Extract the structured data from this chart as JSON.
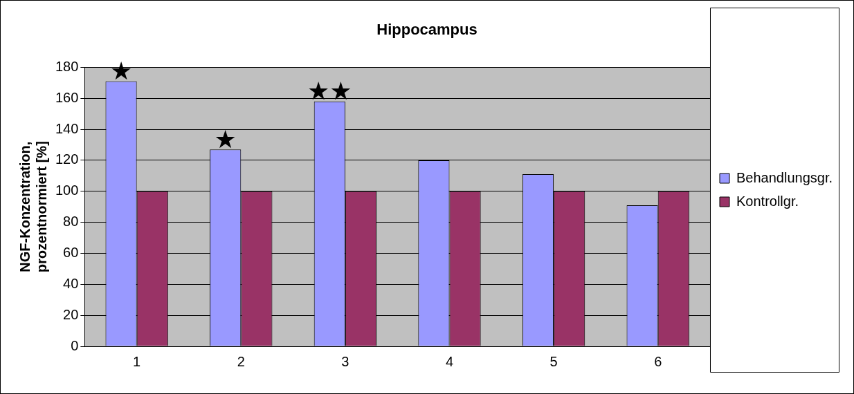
{
  "chart_data": {
    "type": "bar",
    "title": "Hippocampus",
    "ylabel": "NGF-Konzentration, prozentnormiert [%]",
    "categories": [
      "1",
      "2",
      "3",
      "4",
      "5",
      "6"
    ],
    "series": [
      {
        "name": "Behandlungsgr.",
        "color": "#9999ff",
        "values": [
          171,
          127,
          158,
          120,
          111,
          91
        ]
      },
      {
        "name": "Kontrollgr.",
        "color": "#993366",
        "values": [
          100,
          100,
          100,
          100,
          100,
          100
        ]
      }
    ],
    "ylim": [
      0,
      180
    ],
    "yticks": [
      0,
      20,
      40,
      60,
      80,
      100,
      120,
      140,
      160,
      180
    ],
    "grid": "y",
    "legend": "right",
    "annotations": [
      {
        "text": "★",
        "x": "1",
        "y": 171
      },
      {
        "text": "★",
        "x": "2",
        "y": 127
      },
      {
        "text": "★★",
        "x": "3",
        "y": 158
      }
    ]
  }
}
